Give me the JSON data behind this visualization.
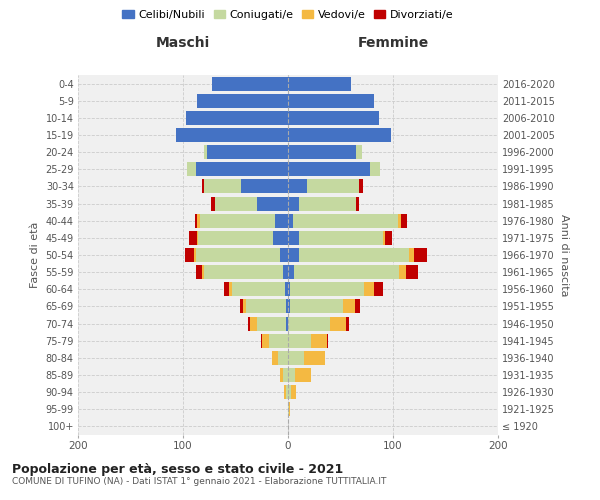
{
  "age_groups": [
    "100+",
    "95-99",
    "90-94",
    "85-89",
    "80-84",
    "75-79",
    "70-74",
    "65-69",
    "60-64",
    "55-59",
    "50-54",
    "45-49",
    "40-44",
    "35-39",
    "30-34",
    "25-29",
    "20-24",
    "15-19",
    "10-14",
    "5-9",
    "0-4"
  ],
  "birth_years": [
    "≤ 1920",
    "1921-1925",
    "1926-1930",
    "1931-1935",
    "1936-1940",
    "1941-1945",
    "1946-1950",
    "1951-1955",
    "1956-1960",
    "1961-1965",
    "1966-1970",
    "1971-1975",
    "1976-1980",
    "1981-1985",
    "1986-1990",
    "1991-1995",
    "1996-2000",
    "2001-2005",
    "2006-2010",
    "2011-2015",
    "2016-2020"
  ],
  "maschi_celibi": [
    0,
    0,
    0,
    0,
    0,
    0,
    2,
    2,
    3,
    5,
    8,
    14,
    12,
    30,
    45,
    88,
    77,
    107,
    97,
    87,
    72
  ],
  "maschi_coniugati": [
    0,
    0,
    2,
    5,
    10,
    18,
    28,
    38,
    50,
    75,
    80,
    72,
    72,
    40,
    35,
    8,
    3,
    0,
    0,
    0,
    0
  ],
  "maschi_vedovi": [
    0,
    0,
    2,
    3,
    5,
    7,
    6,
    3,
    3,
    2,
    2,
    1,
    3,
    0,
    0,
    0,
    0,
    0,
    0,
    0,
    0
  ],
  "maschi_div": [
    0,
    0,
    0,
    0,
    0,
    1,
    2,
    3,
    5,
    6,
    8,
    7,
    2,
    3,
    2,
    0,
    0,
    0,
    0,
    0,
    0
  ],
  "femmine_nubili": [
    0,
    0,
    0,
    0,
    0,
    0,
    0,
    2,
    2,
    6,
    10,
    10,
    5,
    10,
    18,
    78,
    65,
    98,
    87,
    82,
    60
  ],
  "femmine_coniugate": [
    0,
    1,
    3,
    7,
    15,
    22,
    40,
    50,
    70,
    100,
    105,
    80,
    100,
    55,
    50,
    10,
    5,
    0,
    0,
    0,
    0
  ],
  "femmine_vedove": [
    0,
    1,
    5,
    15,
    20,
    15,
    15,
    12,
    10,
    6,
    5,
    2,
    3,
    0,
    0,
    0,
    0,
    0,
    0,
    0,
    0
  ],
  "femmine_div": [
    0,
    0,
    0,
    0,
    0,
    1,
    3,
    5,
    8,
    12,
    12,
    7,
    5,
    3,
    3,
    0,
    0,
    0,
    0,
    0,
    0
  ],
  "colors": {
    "celibi": "#4472C4",
    "coniugati": "#C5D9A0",
    "vedovi": "#F4B942",
    "divorziati": "#C00000"
  },
  "xlim": 200,
  "title": "Popolazione per età, sesso e stato civile - 2021",
  "subtitle": "COMUNE DI TUFINO (NA) - Dati ISTAT 1° gennaio 2021 - Elaborazione TUTTITALIA.IT",
  "xlabel_left": "Maschi",
  "xlabel_right": "Femmine",
  "ylabel_left": "Fasce di età",
  "ylabel_right": "Anni di nascita",
  "legend_labels": [
    "Celibi/Nubili",
    "Coniugati/e",
    "Vedovi/e",
    "Divorziati/e"
  ],
  "bg_color": "#f0f0f0",
  "bar_height": 0.82
}
